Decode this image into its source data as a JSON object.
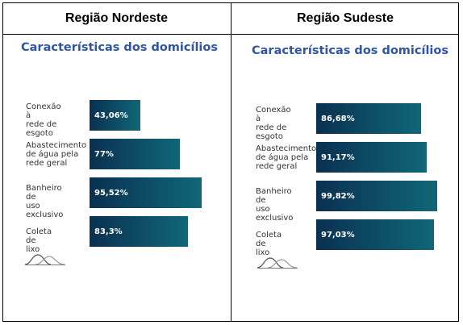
{
  "headers": {
    "left": "Região Nordeste",
    "right": "Região Sudeste"
  },
  "chart_data": [
    {
      "type": "bar",
      "orientation": "horizontal",
      "title": "Características dos domicílios",
      "categories": [
        "Conexão à rede de esgoto",
        "Abastecimento de água pela rede geral",
        "Banheiro de uso exclusivo",
        "Coleta de lixo"
      ],
      "category_lines": [
        [
          "Conexão à",
          "rede de",
          "esgoto"
        ],
        [
          "Abastecimento",
          "de água pela",
          "rede geral"
        ],
        [
          "Banheiro de",
          "uso exclusivo"
        ],
        [
          "Coleta de lixo"
        ]
      ],
      "values": [
        43.06,
        77,
        95.52,
        83.3
      ],
      "value_labels": [
        "43,06%",
        "77%",
        "95,52%",
        "83,3%"
      ],
      "unit": "%",
      "xlim": [
        0,
        100
      ],
      "color": "#0d4f66"
    },
    {
      "type": "bar",
      "orientation": "horizontal",
      "title": "Características dos domicílios",
      "categories": [
        "Conexão à rede de esgoto",
        "Abastecimento de água pela rede geral",
        "Banheiro de uso exclusivo",
        "Coleta de lixo"
      ],
      "category_lines": [
        [
          "Conexão à",
          "rede de",
          "esgoto"
        ],
        [
          "Abastecimento",
          "de água pela",
          "rede geral"
        ],
        [
          "Banheiro de",
          "uso exclusivo"
        ],
        [
          "Coleta de lixo"
        ]
      ],
      "values": [
        86.68,
        91.17,
        99.82,
        97.03
      ],
      "value_labels": [
        "86,68%",
        "91,17%",
        "99,82%",
        "97,03%"
      ],
      "unit": "%",
      "xlim": [
        0,
        100
      ],
      "color": "#0d4f66"
    }
  ],
  "logo_icon": "distribution-curves-icon"
}
